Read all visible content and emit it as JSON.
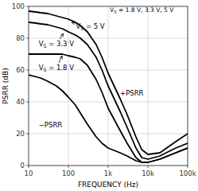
{
  "chart_data": {
    "type": "line",
    "title": "",
    "x_label": "FREQUENCY (Hz)",
    "y_label": "PSRR (dB)",
    "log": "x",
    "grid": true,
    "xlim": [
      10,
      100000
    ],
    "ylim": [
      0,
      100
    ],
    "xticks": [
      10,
      100,
      {
        "value": 1000,
        "label": "1k"
      },
      {
        "value": 10000,
        "label": "10k"
      },
      {
        "value": 100000,
        "label": "100k"
      }
    ],
    "yticks": [
      0,
      20,
      40,
      60,
      80,
      100
    ],
    "series": [
      {
        "color": "#000000",
        "x": [
          10,
          15,
          20,
          30,
          50,
          70,
          100,
          150,
          200,
          300,
          500,
          700,
          1000,
          2000,
          3000,
          5000,
          7000,
          10000,
          20000,
          50000,
          100000
        ],
        "values": [
          97,
          96.5,
          96,
          95.5,
          94,
          93,
          92,
          90,
          88,
          84,
          76,
          68,
          58,
          42,
          32,
          18,
          10,
          7,
          8,
          15,
          20
        ]
      },
      {
        "color": "#000000",
        "x": [
          10,
          15,
          20,
          30,
          50,
          70,
          100,
          150,
          200,
          300,
          500,
          700,
          1000,
          2000,
          3000,
          5000,
          7000,
          10000,
          20000,
          50000,
          100000
        ],
        "values": [
          90,
          89.5,
          89,
          88.5,
          87,
          86,
          84,
          82,
          80,
          76,
          68,
          60,
          50,
          34,
          24,
          11,
          5,
          4,
          6,
          11,
          14
        ]
      },
      {
        "color": "#000000",
        "x": [
          10,
          15,
          20,
          30,
          50,
          70,
          100,
          150,
          200,
          300,
          500,
          700,
          1000,
          2000,
          3000,
          5000,
          7000,
          10000,
          20000,
          50000,
          100000
        ],
        "values": [
          70,
          70,
          70,
          70,
          70,
          70,
          69,
          68,
          67,
          63,
          54,
          46,
          36,
          22,
          14,
          5,
          2,
          2,
          4,
          8,
          11
        ]
      },
      {
        "color": "#000000",
        "x": [
          10,
          20,
          30,
          50,
          70,
          100,
          150,
          200,
          300,
          500,
          700,
          1000,
          2000,
          3000,
          5000,
          7000,
          10000,
          20000,
          50000,
          100000
        ],
        "values": [
          57,
          55,
          53,
          50,
          47,
          43,
          38,
          33,
          26,
          18,
          14,
          11,
          8,
          6,
          3,
          2,
          2,
          4,
          8,
          11
        ]
      }
    ],
    "annotations": [
      {
        "text": "VS = 5 V"
      },
      {
        "text": "VS = 3.3 V"
      },
      {
        "text": "VS = 1.8 V"
      },
      {
        "text": "+PSRR"
      },
      {
        "text": "−PSRR"
      },
      {
        "text": "VS = 1.8 V, 3.3 V, 5 V"
      }
    ]
  }
}
